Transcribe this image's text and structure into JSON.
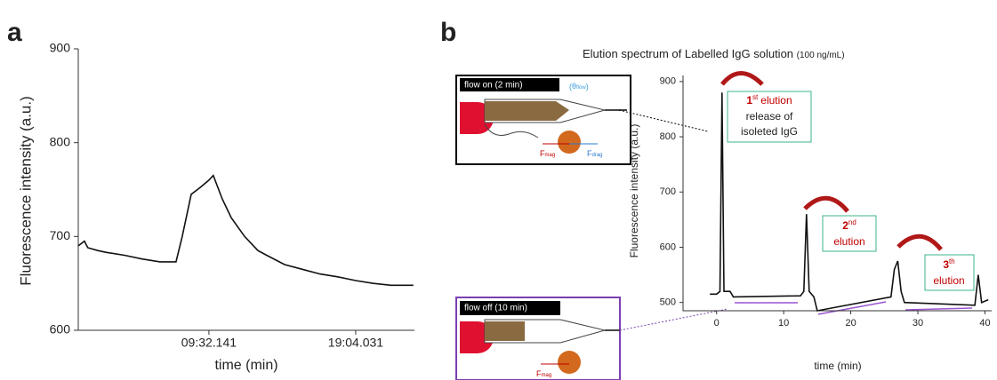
{
  "panels": {
    "a": "a",
    "b": "b"
  },
  "chart_data": [
    {
      "type": "line",
      "ylabel": "Fluorescence intensity (a.u.)",
      "xlabel": "time (min)",
      "xlim": [
        63,
        1373
      ],
      "ylim": [
        600,
        900
      ],
      "xticks": [
        {
          "value": 572.141,
          "label": "09:32.141"
        },
        {
          "value": 1144.031,
          "label": "19:04.031"
        }
      ],
      "yticks": [
        600,
        700,
        800,
        900
      ],
      "series": [
        {
          "color": "#111111",
          "x": [
            63,
            87,
            100,
            139,
            173,
            243,
            312,
            381,
            444,
            468,
            503,
            537,
            572,
            589,
            624,
            659,
            711,
            763,
            797,
            867,
            936,
            1005,
            1074,
            1144,
            1213,
            1282,
            1369
          ],
          "values": [
            690,
            695,
            688,
            685,
            683,
            680,
            676,
            673,
            673,
            700,
            745,
            752,
            760,
            765,
            740,
            720,
            700,
            685,
            680,
            670,
            665,
            660,
            657,
            653,
            650,
            648,
            648
          ]
        }
      ]
    },
    {
      "type": "line",
      "title": "Elution spectrum of Labelled IgG solution",
      "subtitle": "(100 ng/mL)",
      "ylabel": "Fluorescence intensity (a.u.)",
      "xlabel": "time (min)",
      "xlim": [
        -5,
        41
      ],
      "ylim": [
        485,
        911
      ],
      "xticks": [
        0,
        10,
        20,
        30,
        40
      ],
      "yticks": [
        500,
        600,
        700,
        800,
        900
      ],
      "series": [
        {
          "color": "#111111",
          "x": [
            -1,
            0,
            0.5,
            0.8,
            1.1,
            2,
            2.5,
            12.5,
            13,
            13.4,
            13.8,
            14.5,
            15,
            26,
            26.5,
            27,
            27.5,
            28,
            38.5,
            39,
            39.5,
            40.5
          ],
          "values": [
            515,
            515,
            520,
            880,
            520,
            520,
            510,
            512,
            520,
            660,
            520,
            510,
            485,
            510,
            560,
            575,
            520,
            500,
            495,
            550,
            500,
            505
          ]
        }
      ],
      "annotations": [
        {
          "ordinal": "1",
          "suffix": "st",
          "lines": [
            "elution",
            "release of",
            "isoleted IgG"
          ]
        },
        {
          "ordinal": "2",
          "suffix": "nd",
          "lines": [
            "elution"
          ]
        },
        {
          "ordinal": "3",
          "suffix": "th",
          "lines": [
            "elution"
          ]
        }
      ],
      "insets": {
        "flow_on": "flow on (2 min)",
        "flow_off": "flow off (10 min)",
        "force": "F",
        "mag": "mag",
        "drag": "drag",
        "theta": "θ",
        "flow": "flow"
      }
    }
  ]
}
